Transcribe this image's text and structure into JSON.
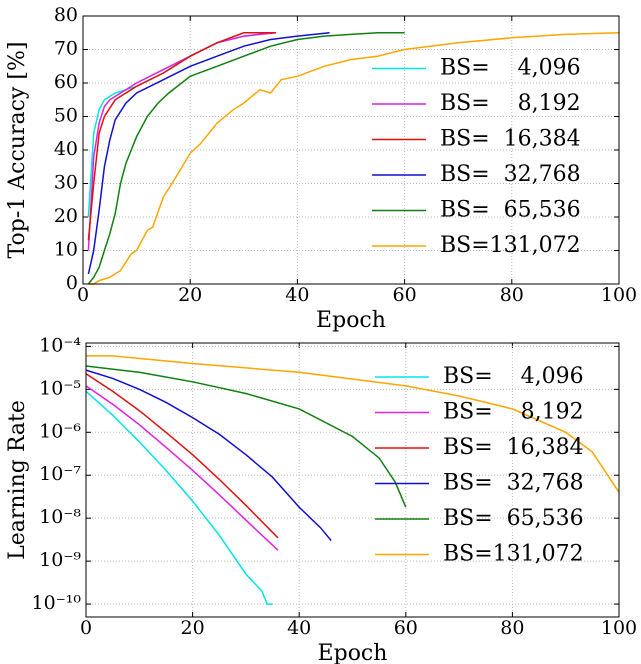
{
  "chart_data": [
    {
      "type": "line",
      "xlabel": "Epoch",
      "ylabel": "Top-1 Accuracy [%]",
      "xlim": [
        0,
        100
      ],
      "ylim": [
        0,
        80
      ],
      "xticks": [
        0,
        20,
        40,
        60,
        80,
        100
      ],
      "yticks": [
        0,
        10,
        20,
        30,
        40,
        50,
        60,
        70,
        80
      ],
      "grid": true,
      "legend": "lower right",
      "series": [
        {
          "name": "BS=    4,096",
          "color": "#00e5e5",
          "x": [
            1,
            2,
            3,
            4,
            5,
            6,
            8,
            10,
            15,
            20,
            25,
            30,
            35
          ],
          "values": [
            20,
            45,
            52,
            55,
            56,
            57,
            58,
            59,
            63,
            68,
            72,
            74,
            75
          ]
        },
        {
          "name": "BS=    8,192",
          "color": "#e020e0",
          "x": [
            1,
            2,
            3,
            4,
            5,
            6,
            8,
            10,
            15,
            20,
            25,
            30,
            36
          ],
          "values": [
            10,
            38,
            48,
            53,
            55,
            56,
            58,
            60,
            64,
            68,
            72,
            74,
            75
          ]
        },
        {
          "name": "BS=  16,384",
          "color": "#e01010",
          "x": [
            1,
            2,
            3,
            4,
            6,
            8,
            10,
            15,
            20,
            25,
            30,
            36
          ],
          "values": [
            13,
            30,
            45,
            50,
            55,
            57,
            59,
            63,
            68,
            72,
            75,
            75
          ]
        },
        {
          "name": "BS=  32,768",
          "color": "#1010d0",
          "x": [
            1,
            2,
            3,
            4,
            5,
            6,
            8,
            10,
            15,
            20,
            25,
            30,
            35,
            40,
            46
          ],
          "values": [
            3,
            10,
            22,
            35,
            43,
            49,
            54,
            57,
            61,
            65,
            68,
            71,
            73,
            74,
            75
          ]
        },
        {
          "name": "BS=  65,536",
          "color": "#108010",
          "x": [
            1,
            2,
            3,
            4,
            5,
            6,
            7,
            8,
            10,
            12,
            14,
            16,
            20,
            25,
            30,
            35,
            40,
            45,
            50,
            55,
            60
          ],
          "values": [
            0,
            2,
            5,
            10,
            15,
            21,
            30,
            36,
            44,
            50,
            54,
            57,
            62,
            65,
            68,
            71,
            73,
            74,
            74.5,
            75,
            75
          ]
        },
        {
          "name": "BS=131,072",
          "color": "#ffa500",
          "x": [
            1,
            2,
            3,
            5,
            7,
            9,
            10,
            12,
            13,
            15,
            17,
            20,
            22,
            25,
            28,
            30,
            33,
            35,
            37,
            40,
            45,
            50,
            55,
            60,
            70,
            80,
            90,
            100
          ],
          "values": [
            0,
            0,
            1,
            2,
            4,
            9,
            10,
            16,
            17,
            26,
            31,
            39,
            42,
            48,
            52,
            54,
            58,
            57,
            61,
            62,
            65,
            67,
            68,
            70,
            72,
            73.5,
            74.5,
            75
          ]
        }
      ]
    },
    {
      "type": "line",
      "xlabel": "Epoch",
      "ylabel": "Learning Rate",
      "log_y": true,
      "xlim": [
        0,
        100
      ],
      "ylim": [
        5e-11,
        0.00012
      ],
      "xticks": [
        0,
        20,
        40,
        60,
        80,
        100
      ],
      "yticks": [
        {
          "value": 1e-10,
          "label": "10⁻¹⁰"
        },
        {
          "value": 1e-09,
          "label": "10⁻⁹"
        },
        {
          "value": 1e-08,
          "label": "10⁻⁸"
        },
        {
          "value": 1e-07,
          "label": "10⁻⁷"
        },
        {
          "value": 1e-06,
          "label": "10⁻⁶"
        },
        {
          "value": 1e-05,
          "label": "10⁻⁵"
        },
        {
          "value": 0.0001,
          "label": "10⁻⁴"
        }
      ],
      "grid": true,
      "legend": "upper right",
      "series": [
        {
          "name": "BS=    4,096",
          "color": "#00e5e5",
          "x": [
            0,
            5,
            10,
            15,
            20,
            25,
            30,
            33,
            34,
            35
          ],
          "values": [
            9e-06,
            2.5e-06,
            6e-07,
            1.3e-07,
            2.5e-08,
            4e-09,
            5e-10,
            2e-10,
            1e-10,
            1e-10
          ]
        },
        {
          "name": "BS=    8,192",
          "color": "#e020e0",
          "x": [
            0,
            5,
            10,
            15,
            20,
            25,
            30,
            36
          ],
          "values": [
            1.2e-05,
            4.5e-06,
            1.5e-06,
            4.5e-07,
            1.3e-07,
            3.5e-08,
            9e-09,
            1.8e-09
          ]
        },
        {
          "name": "BS=  16,384",
          "color": "#e01010",
          "x": [
            0,
            5,
            10,
            15,
            20,
            25,
            30,
            36
          ],
          "values": [
            2.3e-05,
            9e-06,
            3.2e-06,
            1e-06,
            3e-07,
            8e-08,
            2e-08,
            3.5e-09
          ]
        },
        {
          "name": "BS=  32,768",
          "color": "#1010d0",
          "x": [
            0,
            5,
            10,
            15,
            20,
            25,
            30,
            35,
            40,
            44,
            46
          ],
          "values": [
            2.8e-05,
            1.8e-05,
            1e-05,
            5e-06,
            2.2e-06,
            9e-07,
            3e-07,
            9e-08,
            1.8e-08,
            6e-09,
            3e-09
          ]
        },
        {
          "name": "BS=  65,536",
          "color": "#108010",
          "x": [
            0,
            10,
            20,
            30,
            40,
            50,
            55,
            58,
            60
          ],
          "values": [
            3.5e-05,
            2.5e-05,
            1.5e-05,
            8e-06,
            3.5e-06,
            8e-07,
            2.5e-07,
            7e-08,
            1.8e-08
          ]
        },
        {
          "name": "BS=131,072",
          "color": "#ffa500",
          "x": [
            0,
            5,
            20,
            40,
            60,
            70,
            80,
            90,
            95,
            100
          ],
          "values": [
            6e-05,
            6e-05,
            4e-05,
            2.5e-05,
            1.2e-05,
            7e-06,
            3.5e-06,
            1e-06,
            3.5e-07,
            4e-08
          ]
        }
      ]
    }
  ]
}
